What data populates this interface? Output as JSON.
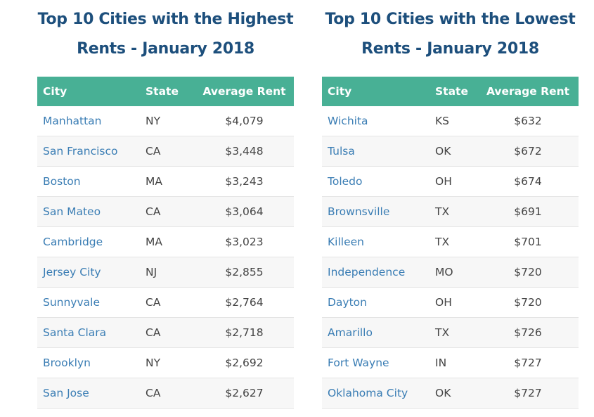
{
  "tables": [
    {
      "title": "Top 10 Cities with the Highest Rents - January 2018",
      "headers": [
        "City",
        "State",
        "Average Rent"
      ],
      "rows": [
        [
          "Manhattan",
          "NY",
          "$4,079"
        ],
        [
          "San Francisco",
          "CA",
          "$3,448"
        ],
        [
          "Boston",
          "MA",
          "$3,243"
        ],
        [
          "San Mateo",
          "CA",
          "$3,064"
        ],
        [
          "Cambridge",
          "MA",
          "$3,023"
        ],
        [
          "Jersey City",
          "NJ",
          "$2,855"
        ],
        [
          "Sunnyvale",
          "CA",
          "$2,764"
        ],
        [
          "Santa Clara",
          "CA",
          "$2,718"
        ],
        [
          "Brooklyn",
          "NY",
          "$2,692"
        ],
        [
          "San Jose",
          "CA",
          "$2,627"
        ]
      ]
    },
    {
      "title": "Top 10 Cities with the Lowest Rents - January 2018",
      "headers": [
        "City",
        "State",
        "Average Rent"
      ],
      "rows": [
        [
          "Wichita",
          "KS",
          "$632"
        ],
        [
          "Tulsa",
          "OK",
          "$672"
        ],
        [
          "Toledo",
          "OH",
          "$674"
        ],
        [
          "Brownsville",
          "TX",
          "$691"
        ],
        [
          "Killeen",
          "TX",
          "$701"
        ],
        [
          "Independence",
          "MO",
          "$720"
        ],
        [
          "Dayton",
          "OH",
          "$720"
        ],
        [
          "Amarillo",
          "TX",
          "$726"
        ],
        [
          "Fort Wayne",
          "IN",
          "$727"
        ],
        [
          "Oklahoma City",
          "OK",
          "$727"
        ]
      ]
    }
  ],
  "colors": {
    "header_bg": "#48b095",
    "title": "#1d4f7c",
    "link": "#3a7db4"
  }
}
